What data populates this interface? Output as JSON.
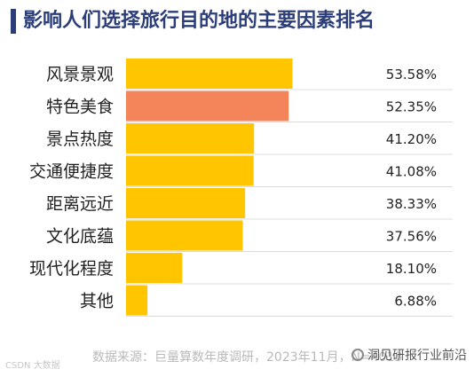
{
  "header": {
    "title": "影响人们选择旅行目的地的主要因素排名"
  },
  "chart_data": {
    "type": "bar",
    "orientation": "horizontal",
    "title": "影响人们选择旅行目的地的主要因素排名",
    "categories": [
      "风景景观",
      "特色美食",
      "景点热度",
      "交通便捷度",
      "距离远近",
      "文化底蕴",
      "现代化程度",
      "其他"
    ],
    "values": [
      53.58,
      52.35,
      41.2,
      41.08,
      38.33,
      37.56,
      18.1,
      6.88
    ],
    "value_labels": [
      "53.58%",
      "52.35%",
      "41.20%",
      "41.08%",
      "38.33%",
      "37.56%",
      "18.10%",
      "6.88%"
    ],
    "unit": "%",
    "xlim": [
      0,
      100
    ],
    "highlight_index": 1,
    "colors": {
      "bar": "#FFC600",
      "highlight": "#F4845A",
      "divider": "#dcdcdc"
    },
    "grid": false,
    "legend": "none"
  },
  "footer": {
    "source": "数据来源：巨量算数年度调研，2023年11月，N=4013",
    "watermark_left": "CSDN 大数据",
    "watermark_right": "洞见研报行业前沿"
  }
}
